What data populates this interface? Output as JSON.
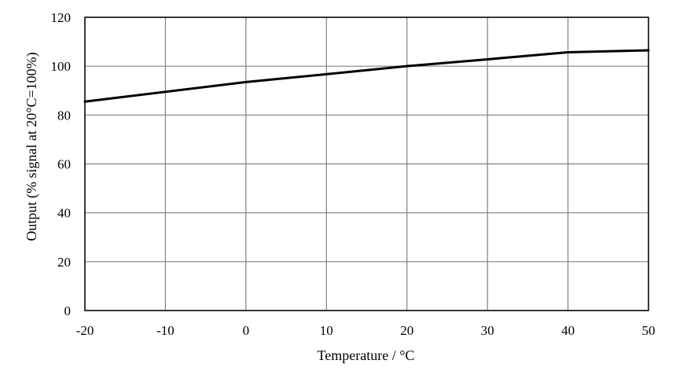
{
  "chart_data": {
    "type": "line",
    "title": "",
    "xlabel": "Temperature / °C",
    "ylabel": "Output (% signal at 20°C=100%)",
    "xlim": [
      -20,
      50
    ],
    "ylim": [
      0,
      120
    ],
    "x_ticks": [
      -20,
      -10,
      0,
      10,
      20,
      30,
      40,
      50
    ],
    "y_ticks": [
      0,
      20,
      40,
      60,
      80,
      100,
      120
    ],
    "x_tick_labels": [
      "-20",
      "-10",
      "0",
      "10",
      "20",
      "30",
      "40",
      "50"
    ],
    "y_tick_labels": [
      "0",
      "20",
      "40",
      "60",
      "80",
      "100",
      "120"
    ],
    "grid": true,
    "legend": "none",
    "series": [
      {
        "color": "#000000",
        "x": [
          -20,
          -10,
          0,
          10,
          20,
          30,
          40,
          50
        ],
        "y": [
          85.5,
          89.5,
          93.5,
          96.7,
          100,
          102.8,
          105.7,
          106.5
        ]
      }
    ]
  }
}
